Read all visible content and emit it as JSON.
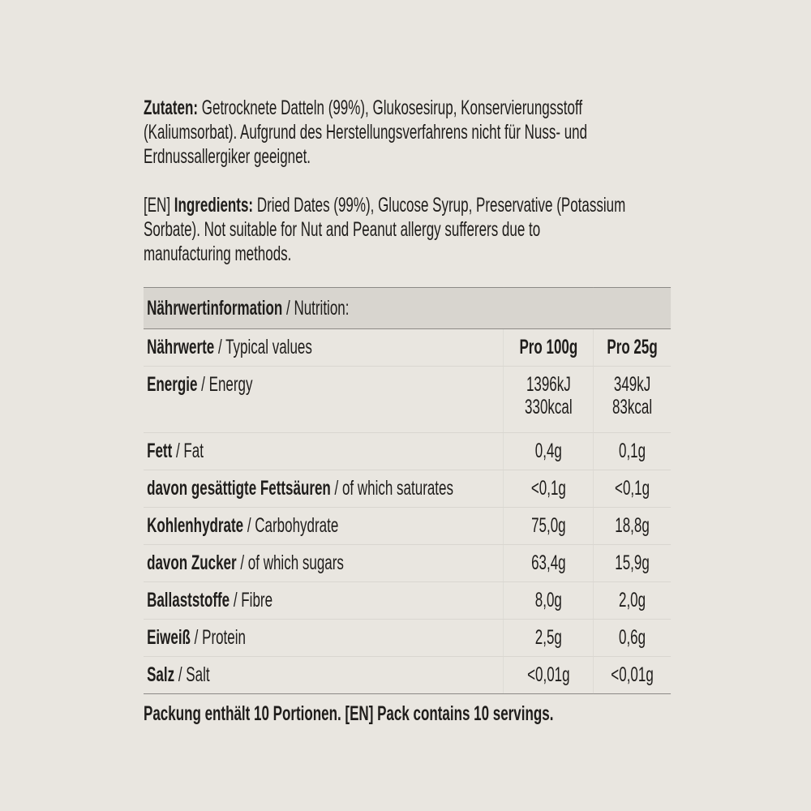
{
  "ingredients_de": {
    "label": "Zutaten:",
    "lines": [
      "Getrocknete Datteln (99%), Glukosesirup, Konservierungsstoff",
      "(Kaliumsorbat). Aufgrund des Herstellungsverfahrens nicht für Nuss- und",
      "Erdnussallergiker geeignet."
    ]
  },
  "ingredients_en": {
    "prefix": "[EN]",
    "label": "Ingredients:",
    "lines": [
      "Dried Dates (99%), Glucose Syrup, Preservative (Potassium",
      "Sorbate). Not suitable for Nut and Peanut allergy sufferers due to",
      "manufacturing methods."
    ]
  },
  "nutrition": {
    "title_de": "Nährwertinformation",
    "title_en": "/ Nutrition:",
    "header": {
      "de": "Nährwerte",
      "en": "/ Typical values",
      "col1": "Pro 100g",
      "col2": "Pro 25g"
    },
    "energy": {
      "de": "Energie",
      "en": "/ Energy",
      "col1a": "1396kJ",
      "col1b": "330kcal",
      "col2a": "349kJ",
      "col2b": "83kcal"
    },
    "rows": [
      {
        "de": "Fett",
        "en": "/ Fat",
        "col1": "0,4g",
        "col2": "0,1g"
      },
      {
        "de": "davon gesättigte Fettsäuren",
        "en": "/ of which saturates",
        "col1": "<0,1g",
        "col2": "<0,1g"
      },
      {
        "de": "Kohlenhydrate",
        "en": "/ Carbohydrate",
        "col1": "75,0g",
        "col2": "18,8g"
      },
      {
        "de": "davon Zucker",
        "en": "/ of which sugars",
        "col1": "63,4g",
        "col2": "15,9g"
      },
      {
        "de": "Ballaststoffe",
        "en": "/ Fibre",
        "col1": "8,0g",
        "col2": "2,0g"
      },
      {
        "de": "Eiweiß",
        "en": "/ Protein",
        "col1": "2,5g",
        "col2": "0,6g"
      },
      {
        "de": "Salz",
        "en": "/ Salt",
        "col1": "<0,01g",
        "col2": "<0,01g"
      }
    ]
  },
  "footer": "Packung enthält 10 Portionen. [EN] Pack contains 10 servings."
}
